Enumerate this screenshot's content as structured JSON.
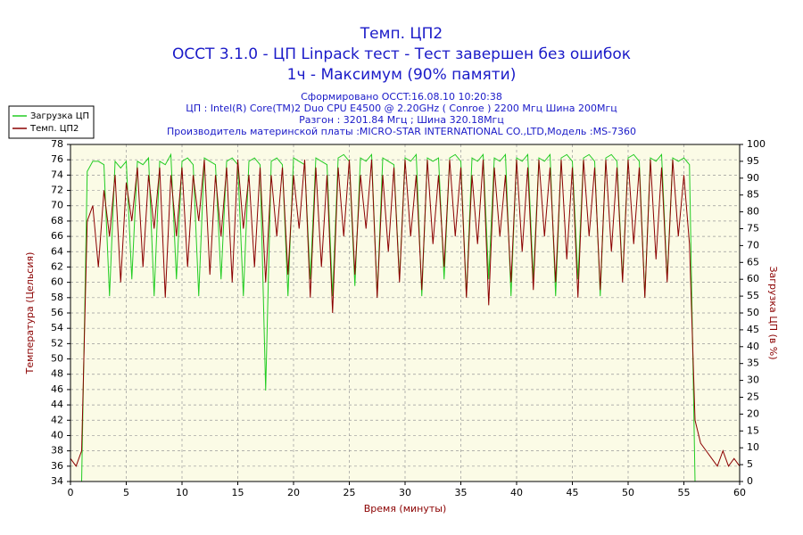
{
  "chart_data": {
    "type": "line",
    "title": "Темп. ЦП2",
    "subtitle": [
      "OCCT 3.1.0 - ЦП Linpack тест - Тест завершен без ошибок",
      "1ч - Максимум (90% памяти)"
    ],
    "annotations": [
      "Сформировано OCCT:16.08.10 10:20:38",
      "ЦП : Intel(R) Core(TM)2 Duo CPU E4500 @ 2.20GHz ( Conroe ) 2200 Мгц Шина 200Мгц",
      "Разгон : 3201.84 Мгц ; Шина 320.18Мгц",
      "Производитель материнской платы :MICRO-STAR INTERNATIONAL CO.,LTD,Модель :MS-7360"
    ],
    "x_label": "Время (минуты)",
    "y_label": "Температура (Цельсия)",
    "y2_label": "Загрузка ЦП (в %)",
    "x": [
      0,
      0.5,
      1,
      1.5,
      2,
      2.5,
      3,
      3.5,
      4,
      4.5,
      5,
      5.5,
      6,
      6.5,
      7,
      7.5,
      8,
      8.5,
      9,
      9.5,
      10,
      10.5,
      11,
      11.5,
      12,
      12.5,
      13,
      13.5,
      14,
      14.5,
      15,
      15.5,
      16,
      16.5,
      17,
      17.5,
      18,
      18.5,
      19,
      19.5,
      20,
      20.5,
      21,
      21.5,
      22,
      22.5,
      23,
      23.5,
      24,
      24.5,
      25,
      25.5,
      26,
      26.5,
      27,
      27.5,
      28,
      28.5,
      29,
      29.5,
      30,
      30.5,
      31,
      31.5,
      32,
      32.5,
      33,
      33.5,
      34,
      34.5,
      35,
      35.5,
      36,
      36.5,
      37,
      37.5,
      38,
      38.5,
      39,
      39.5,
      40,
      40.5,
      41,
      41.5,
      42,
      42.5,
      43,
      43.5,
      44,
      44.5,
      45,
      45.5,
      46,
      46.5,
      47,
      47.5,
      48,
      48.5,
      49,
      49.5,
      50,
      50.5,
      51,
      51.5,
      52,
      52.5,
      53,
      53.5,
      54,
      54.5,
      55,
      55.5,
      56,
      56.5,
      57,
      57.5,
      58,
      58.5,
      59,
      59.5,
      60
    ],
    "series": [
      {
        "name": "Загрузка ЦП",
        "color": "#22cc22",
        "axis": "y2",
        "values": [
          0,
          0,
          0,
          92,
          95,
          95,
          94,
          55,
          95,
          93,
          95,
          60,
          95,
          94,
          96,
          55,
          95,
          94,
          97,
          60,
          95,
          96,
          94,
          55,
          96,
          95,
          94,
          60,
          95,
          96,
          94,
          55,
          95,
          96,
          94,
          27,
          95,
          96,
          94,
          55,
          96,
          95,
          94,
          60,
          96,
          95,
          94,
          55,
          96,
          97,
          95,
          58,
          96,
          95,
          97,
          55,
          96,
          95,
          94,
          60,
          96,
          95,
          97,
          55,
          96,
          95,
          96,
          60,
          96,
          97,
          95,
          55,
          96,
          95,
          97,
          60,
          96,
          95,
          97,
          55,
          96,
          95,
          97,
          60,
          96,
          95,
          97,
          55,
          96,
          97,
          95,
          60,
          96,
          97,
          95,
          55,
          96,
          97,
          95,
          60,
          96,
          97,
          95,
          55,
          96,
          95,
          97,
          60,
          96,
          95,
          96,
          94,
          0,
          0,
          0,
          0,
          0,
          0,
          0,
          0,
          0
        ]
      },
      {
        "name": "Темп. ЦП2",
        "color": "#8b0000",
        "values": [
          37,
          36,
          38,
          68,
          70,
          62,
          72,
          66,
          74,
          60,
          73,
          68,
          75,
          62,
          74,
          67,
          75,
          58,
          74,
          66,
          75,
          62,
          74,
          68,
          76,
          61,
          74,
          66,
          75,
          60,
          76,
          67,
          74,
          62,
          75,
          60,
          74,
          66,
          75,
          61,
          74,
          67,
          76,
          58,
          75,
          62,
          74,
          56,
          75,
          66,
          76,
          61,
          74,
          67,
          76,
          58,
          74,
          64,
          75,
          60,
          76,
          66,
          74,
          59,
          76,
          65,
          74,
          62,
          76,
          66,
          75,
          58,
          74,
          65,
          76,
          57,
          75,
          66,
          74,
          60,
          76,
          64,
          75,
          59,
          76,
          66,
          75,
          60,
          76,
          63,
          75,
          58,
          76,
          66,
          75,
          59,
          76,
          64,
          75,
          60,
          76,
          65,
          75,
          58,
          76,
          63,
          75,
          60,
          76,
          66,
          74,
          65,
          42,
          39,
          38,
          37,
          36,
          38,
          36,
          37,
          36
        ]
      }
    ],
    "xlim": [
      0,
      60
    ],
    "xticks": [
      0,
      5,
      10,
      15,
      20,
      25,
      30,
      35,
      40,
      45,
      50,
      55,
      60
    ],
    "ylim": [
      34,
      78
    ],
    "yticks": [
      34,
      36,
      38,
      40,
      42,
      44,
      46,
      48,
      50,
      52,
      54,
      56,
      58,
      60,
      62,
      64,
      66,
      68,
      70,
      72,
      74,
      76,
      78
    ],
    "y2lim": [
      0,
      100
    ],
    "y2ticks": [
      0,
      5,
      10,
      15,
      20,
      25,
      30,
      35,
      40,
      45,
      50,
      55,
      60,
      65,
      70,
      75,
      80,
      85,
      90,
      95,
      100
    ],
    "grid": true
  }
}
